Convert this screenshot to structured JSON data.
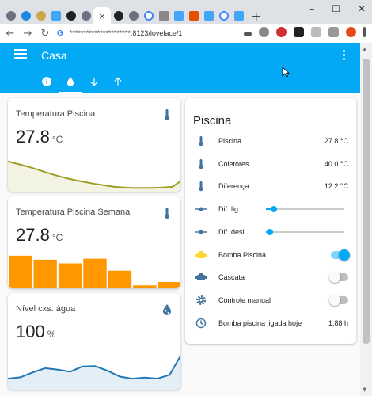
{
  "browser": {
    "tabs": [
      "t1",
      "t2",
      "t3",
      "t4",
      "t5",
      "t6",
      "t7",
      "t8",
      "t9",
      "t10",
      "t11",
      "t12",
      "t13",
      "t14",
      "t15",
      "t16"
    ],
    "active_close": "×",
    "new_tab": "+",
    "window_controls": {
      "minimize": "–",
      "maximize": "☐",
      "close": "✕"
    },
    "url": "**********************:8123/lovelace/1"
  },
  "app": {
    "title": "Casa",
    "view_icons": [
      "info-icon",
      "water-drop-icon",
      "arrow-down-icon",
      "arrow-up-icon"
    ]
  },
  "cards": [
    {
      "name": "Temperatura Piscina",
      "value": "27.8",
      "unit": "°C",
      "icon": "thermometer-icon",
      "chart_data": {
        "type": "area",
        "color": "#9e9d24",
        "values": [
          0.79,
          0.72,
          0.65,
          0.57,
          0.48,
          0.4,
          0.33,
          0.27,
          0.22,
          0.17,
          0.13,
          0.09,
          0.07,
          0.06,
          0.06,
          0.06,
          0.07,
          0.09,
          0.27
        ]
      }
    },
    {
      "name": "Temperatura Piscina Semana",
      "value": "27.8",
      "unit": "°C",
      "icon": "thermometer-icon",
      "chart_data": {
        "type": "bar",
        "color": "#ff9800",
        "values": [
          0.98,
          0.86,
          0.75,
          0.89,
          0.53,
          0.09,
          0.19
        ]
      }
    },
    {
      "name": "Nível cxs. água",
      "value": "100",
      "unit": "%",
      "icon": "water-percent-icon",
      "chart_data": {
        "type": "area",
        "color": "#1f77b4",
        "values": [
          0.27,
          0.31,
          0.45,
          0.57,
          0.53,
          0.47,
          0.62,
          0.63,
          0.5,
          0.33,
          0.27,
          0.3,
          0.27,
          0.38,
          1.0
        ]
      }
    }
  ],
  "piscina": {
    "title": "Piscina",
    "rows": [
      {
        "label": "Piscina",
        "value": "27.8 °C",
        "icon": "thermometer-icon",
        "kind": "value"
      },
      {
        "label": "Coletores",
        "value": "40.0 °C",
        "icon": "thermometer-icon",
        "kind": "value"
      },
      {
        "label": "Diferença",
        "value": "12.2 °C",
        "icon": "thermometer-icon",
        "kind": "value"
      },
      {
        "label": "Dif. lig.",
        "slider": 0.1,
        "icon": "ray-vertex-icon",
        "kind": "slider"
      },
      {
        "label": "Dif. desl.",
        "slider": 0.05,
        "icon": "ray-vertex-icon",
        "kind": "slider"
      },
      {
        "label": "Bomba Piscina",
        "on": true,
        "icon": "engine-icon",
        "kind": "toggle"
      },
      {
        "label": "Cascata",
        "on": false,
        "icon": "pump-icon",
        "kind": "toggle"
      },
      {
        "label": "Controle manual",
        "on": false,
        "icon": "gear-icon",
        "kind": "toggle"
      },
      {
        "label": "Bomba piscina ligada hoje",
        "value": "1.88 h",
        "icon": "clock-icon",
        "kind": "value"
      }
    ]
  },
  "colors": {
    "header": "#03a9f4",
    "icon": "#44739e",
    "engine": "#fdd835"
  }
}
